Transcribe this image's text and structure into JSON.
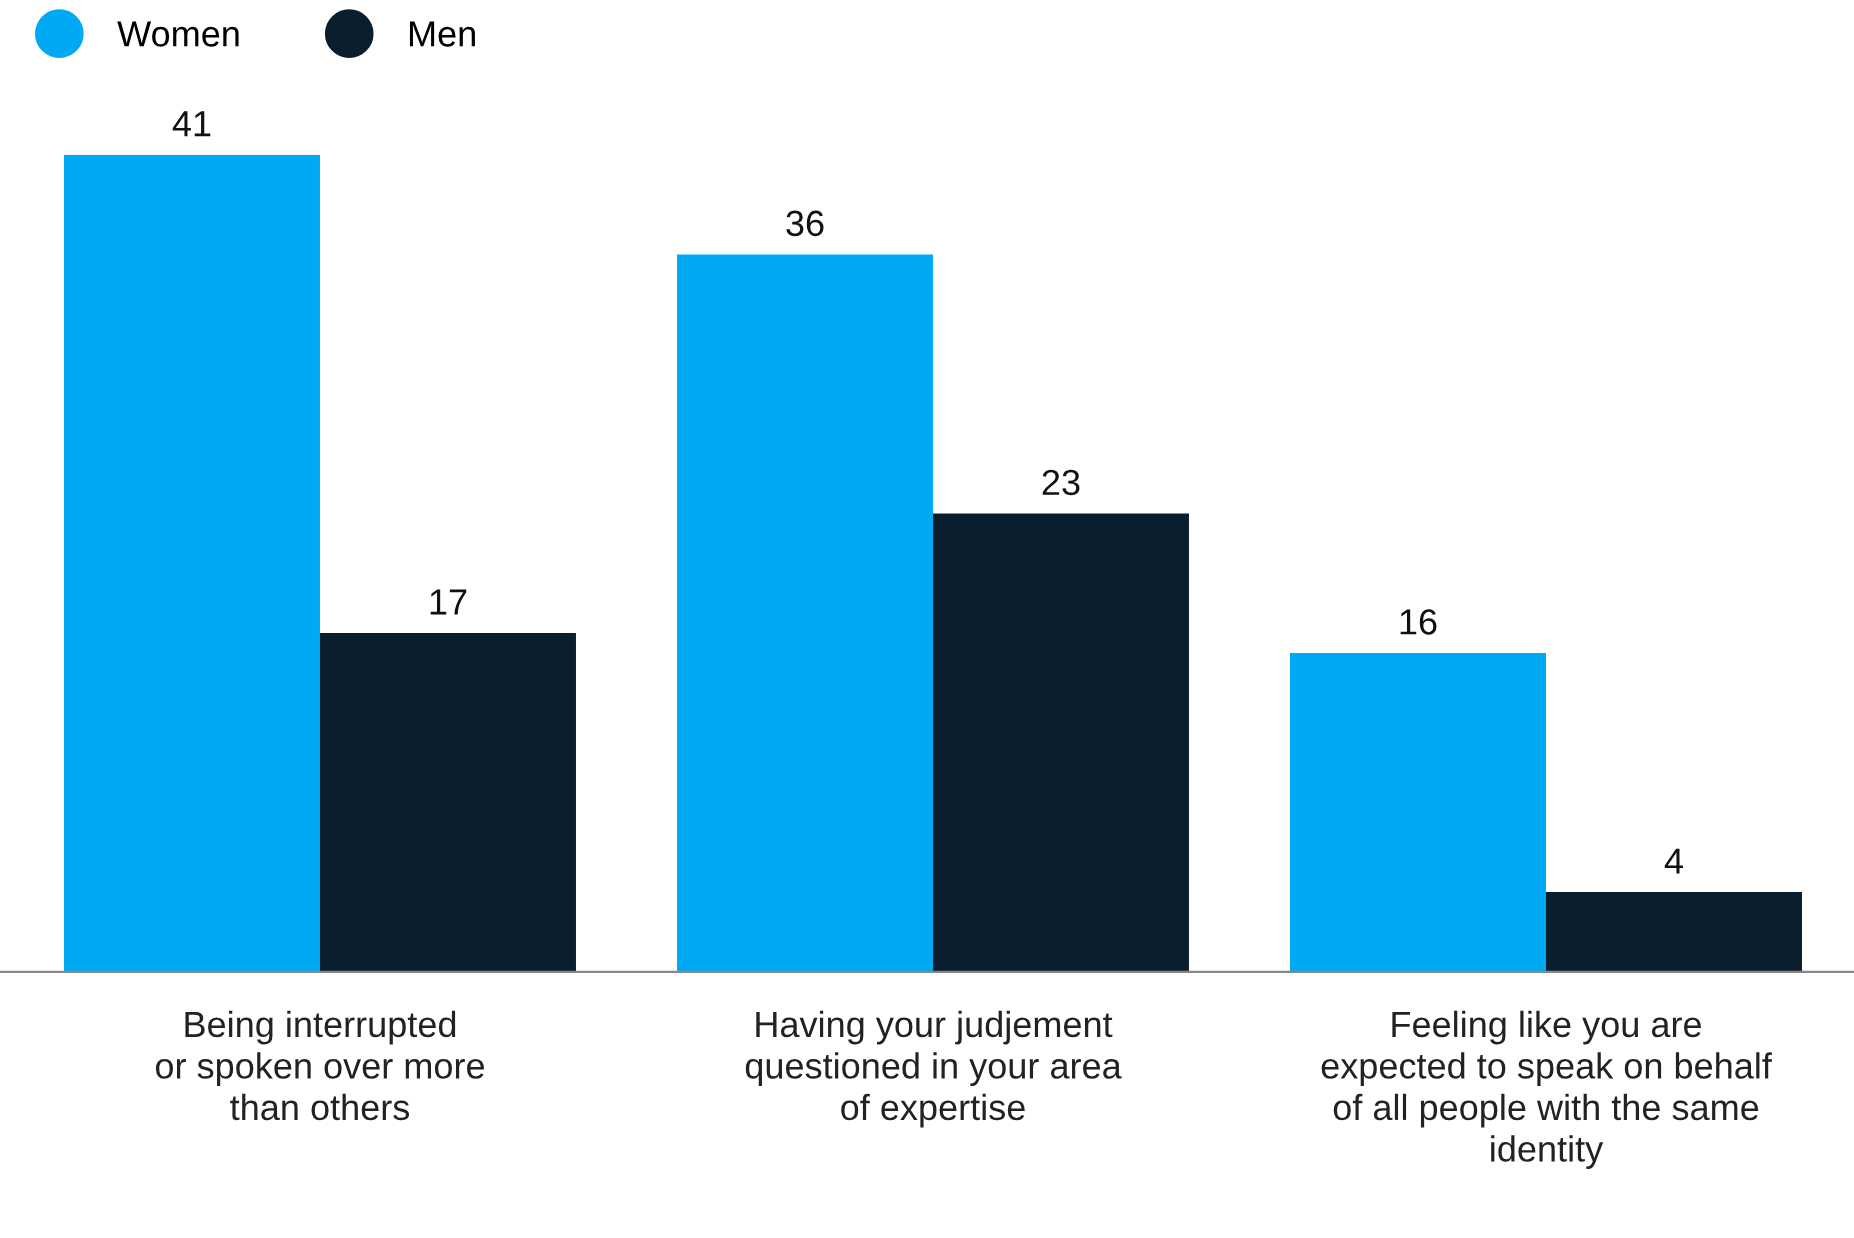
{
  "chart_data": {
    "type": "bar",
    "categories": [
      "Being interrupted\nor spoken over more\nthan others",
      "Having your judjement\nquestioned in your area\nof expertise",
      "Feeling like you are\nexpected to speak on behalf\nof all people with the same\nidentity"
    ],
    "series": [
      {
        "name": "Women",
        "color": "#00a9f4",
        "values": [
          41,
          36,
          16
        ]
      },
      {
        "name": "Men",
        "color": "#0a1e2e",
        "values": [
          17,
          23,
          4
        ]
      }
    ],
    "data_labels": true,
    "legend": "top left",
    "grid": false
  }
}
